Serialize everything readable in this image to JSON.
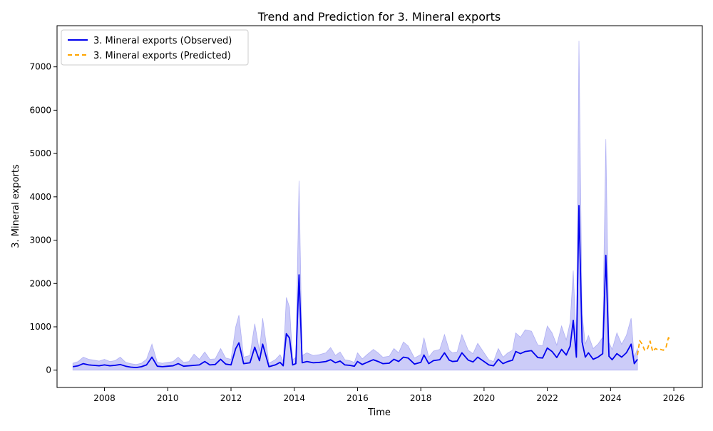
{
  "chart_data": {
    "type": "line",
    "title": "Trend and Prediction for 3. Mineral  exports",
    "xlabel": "Time",
    "ylabel": "3. Mineral  exports",
    "xlim": [
      2006.5,
      2026.9
    ],
    "ylim": [
      -400,
      7950
    ],
    "xticks": [
      2008,
      2010,
      2012,
      2014,
      2016,
      2018,
      2020,
      2022,
      2024,
      2026
    ],
    "xtick_labels": [
      "2008",
      "2010",
      "2012",
      "2014",
      "2016",
      "2018",
      "2020",
      "2022",
      "2024",
      "2026"
    ],
    "yticks": [
      0,
      1000,
      2000,
      3000,
      4000,
      5000,
      6000,
      7000
    ],
    "ytick_labels": [
      "0",
      "1000",
      "2000",
      "3000",
      "4000",
      "5000",
      "6000",
      "7000"
    ],
    "grid": false,
    "legend_position": "top-left",
    "colors": {
      "observed": "#0000ee",
      "predicted": "#ffa500",
      "band": "#8080ee"
    },
    "series": [
      {
        "name": "3. Mineral  exports (Observed)",
        "style": "solid",
        "x": [
          2007.0,
          2007.17,
          2007.33,
          2007.5,
          2007.67,
          2007.83,
          2008.0,
          2008.17,
          2008.33,
          2008.5,
          2008.67,
          2008.83,
          2009.0,
          2009.17,
          2009.33,
          2009.5,
          2009.67,
          2009.83,
          2010.0,
          2010.17,
          2010.33,
          2010.5,
          2010.67,
          2010.83,
          2011.0,
          2011.17,
          2011.33,
          2011.5,
          2011.67,
          2011.83,
          2012.0,
          2012.15,
          2012.25,
          2012.4,
          2012.6,
          2012.75,
          2012.9,
          2013.0,
          2013.2,
          2013.4,
          2013.55,
          2013.65,
          2013.75,
          2013.85,
          2013.95,
          2014.05,
          2014.15,
          2014.25,
          2014.4,
          2014.6,
          2014.8,
          2015.0,
          2015.15,
          2015.3,
          2015.45,
          2015.6,
          2015.75,
          2015.9,
          2016.0,
          2016.15,
          2016.3,
          2016.5,
          2016.65,
          2016.8,
          2017.0,
          2017.15,
          2017.3,
          2017.45,
          2017.6,
          2017.8,
          2018.0,
          2018.1,
          2018.25,
          2018.4,
          2018.6,
          2018.75,
          2018.9,
          2019.0,
          2019.15,
          2019.3,
          2019.5,
          2019.65,
          2019.8,
          2020.0,
          2020.15,
          2020.3,
          2020.45,
          2020.6,
          2020.75,
          2020.9,
          2021.0,
          2021.15,
          2021.3,
          2021.5,
          2021.7,
          2021.85,
          2022.0,
          2022.15,
          2022.3,
          2022.45,
          2022.6,
          2022.72,
          2022.82,
          2022.92,
          2023.0,
          2023.1,
          2023.2,
          2023.3,
          2023.45,
          2023.6,
          2023.75,
          2023.85,
          2023.95,
          2024.05,
          2024.2,
          2024.35,
          2024.5,
          2024.65,
          2024.75,
          2024.85
        ],
        "values": [
          80,
          100,
          150,
          120,
          110,
          100,
          120,
          100,
          110,
          130,
          90,
          70,
          60,
          80,
          120,
          300,
          90,
          80,
          90,
          100,
          150,
          90,
          100,
          110,
          120,
          200,
          120,
          130,
          250,
          140,
          120,
          500,
          630,
          150,
          170,
          530,
          220,
          600,
          80,
          120,
          180,
          100,
          840,
          740,
          120,
          150,
          2200,
          170,
          200,
          170,
          180,
          200,
          240,
          170,
          210,
          120,
          110,
          90,
          200,
          130,
          180,
          240,
          200,
          150,
          160,
          250,
          200,
          300,
          280,
          140,
          180,
          350,
          150,
          220,
          240,
          400,
          230,
          200,
          210,
          400,
          230,
          190,
          300,
          200,
          120,
          100,
          250,
          150,
          200,
          230,
          430,
          380,
          430,
          450,
          290,
          280,
          510,
          430,
          290,
          480,
          350,
          550,
          1150,
          300,
          3800,
          650,
          300,
          400,
          250,
          300,
          380,
          2650,
          320,
          240,
          380,
          300,
          400,
          600,
          150,
          250
        ]
      },
      {
        "name": "3. Mineral  exports (Predicted)",
        "style": "dashed",
        "x": [
          2024.85,
          2024.92,
          2025.0,
          2025.08,
          2025.17,
          2025.25,
          2025.33,
          2025.42,
          2025.5,
          2025.58,
          2025.67,
          2025.75,
          2025.83,
          2025.9
        ],
        "values": [
          350,
          680,
          600,
          450,
          500,
          670,
          430,
          500,
          470,
          480,
          460,
          520,
          750,
          700
        ]
      }
    ],
    "band": {
      "x": [
        2007.0,
        2007.17,
        2007.33,
        2007.5,
        2007.67,
        2007.83,
        2008.0,
        2008.17,
        2008.33,
        2008.5,
        2008.67,
        2008.83,
        2009.0,
        2009.17,
        2009.33,
        2009.5,
        2009.67,
        2009.83,
        2010.0,
        2010.17,
        2010.33,
        2010.5,
        2010.67,
        2010.83,
        2011.0,
        2011.17,
        2011.33,
        2011.5,
        2011.67,
        2011.83,
        2012.0,
        2012.15,
        2012.25,
        2012.4,
        2012.6,
        2012.75,
        2012.9,
        2013.0,
        2013.2,
        2013.4,
        2013.55,
        2013.65,
        2013.75,
        2013.85,
        2013.95,
        2014.05,
        2014.15,
        2014.25,
        2014.4,
        2014.6,
        2014.8,
        2015.0,
        2015.15,
        2015.3,
        2015.45,
        2015.6,
        2015.75,
        2015.9,
        2016.0,
        2016.15,
        2016.3,
        2016.5,
        2016.65,
        2016.8,
        2017.0,
        2017.15,
        2017.3,
        2017.45,
        2017.6,
        2017.8,
        2018.0,
        2018.1,
        2018.25,
        2018.4,
        2018.6,
        2018.75,
        2018.9,
        2019.0,
        2019.15,
        2019.3,
        2019.5,
        2019.65,
        2019.8,
        2020.0,
        2020.15,
        2020.3,
        2020.45,
        2020.6,
        2020.75,
        2020.9,
        2021.0,
        2021.15,
        2021.3,
        2021.5,
        2021.7,
        2021.85,
        2022.0,
        2022.15,
        2022.3,
        2022.45,
        2022.6,
        2022.72,
        2022.82,
        2022.92,
        2023.0,
        2023.1,
        2023.2,
        2023.3,
        2023.45,
        2023.6,
        2023.75,
        2023.85,
        2023.95,
        2024.05,
        2024.2,
        2024.35,
        2024.5,
        2024.65,
        2024.75,
        2024.85
      ],
      "lower": [
        0,
        0,
        0,
        0,
        0,
        0,
        0,
        0,
        0,
        0,
        0,
        0,
        0,
        0,
        0,
        0,
        0,
        0,
        0,
        0,
        0,
        0,
        0,
        0,
        0,
        0,
        0,
        0,
        0,
        0,
        0,
        0,
        0,
        0,
        0,
        0,
        0,
        0,
        0,
        0,
        0,
        0,
        0,
        0,
        0,
        0,
        0,
        0,
        0,
        0,
        0,
        0,
        0,
        0,
        0,
        0,
        0,
        0,
        0,
        0,
        0,
        0,
        0,
        0,
        0,
        0,
        0,
        0,
        0,
        0,
        0,
        0,
        0,
        0,
        0,
        0,
        0,
        0,
        0,
        0,
        0,
        0,
        0,
        0,
        0,
        0,
        0,
        0,
        0,
        0,
        0,
        0,
        0,
        0,
        0,
        0,
        0,
        0,
        0,
        0,
        0,
        0,
        0,
        0,
        0,
        0,
        0,
        0,
        0,
        0,
        0,
        0,
        0,
        0,
        0,
        0,
        0,
        0,
        0,
        0
      ],
      "upper": [
        160,
        200,
        300,
        250,
        230,
        210,
        250,
        200,
        220,
        300,
        180,
        150,
        130,
        160,
        250,
        600,
        180,
        160,
        180,
        200,
        300,
        180,
        200,
        370,
        250,
        420,
        250,
        260,
        500,
        280,
        250,
        1000,
        1270,
        300,
        340,
        1070,
        440,
        1200,
        160,
        240,
        360,
        200,
        1680,
        1450,
        240,
        300,
        4370,
        340,
        400,
        340,
        360,
        400,
        520,
        340,
        420,
        240,
        220,
        180,
        400,
        260,
        360,
        480,
        400,
        300,
        320,
        500,
        400,
        650,
        560,
        280,
        360,
        750,
        300,
        440,
        480,
        820,
        460,
        400,
        420,
        820,
        460,
        380,
        620,
        400,
        240,
        200,
        500,
        300,
        400,
        460,
        860,
        760,
        930,
        900,
        580,
        560,
        1020,
        860,
        580,
        1020,
        700,
        1100,
        2300,
        600,
        7600,
        1300,
        600,
        800,
        500,
        600,
        760,
        5330,
        640,
        480,
        860,
        600,
        800,
        1200,
        300,
        500
      ]
    }
  }
}
